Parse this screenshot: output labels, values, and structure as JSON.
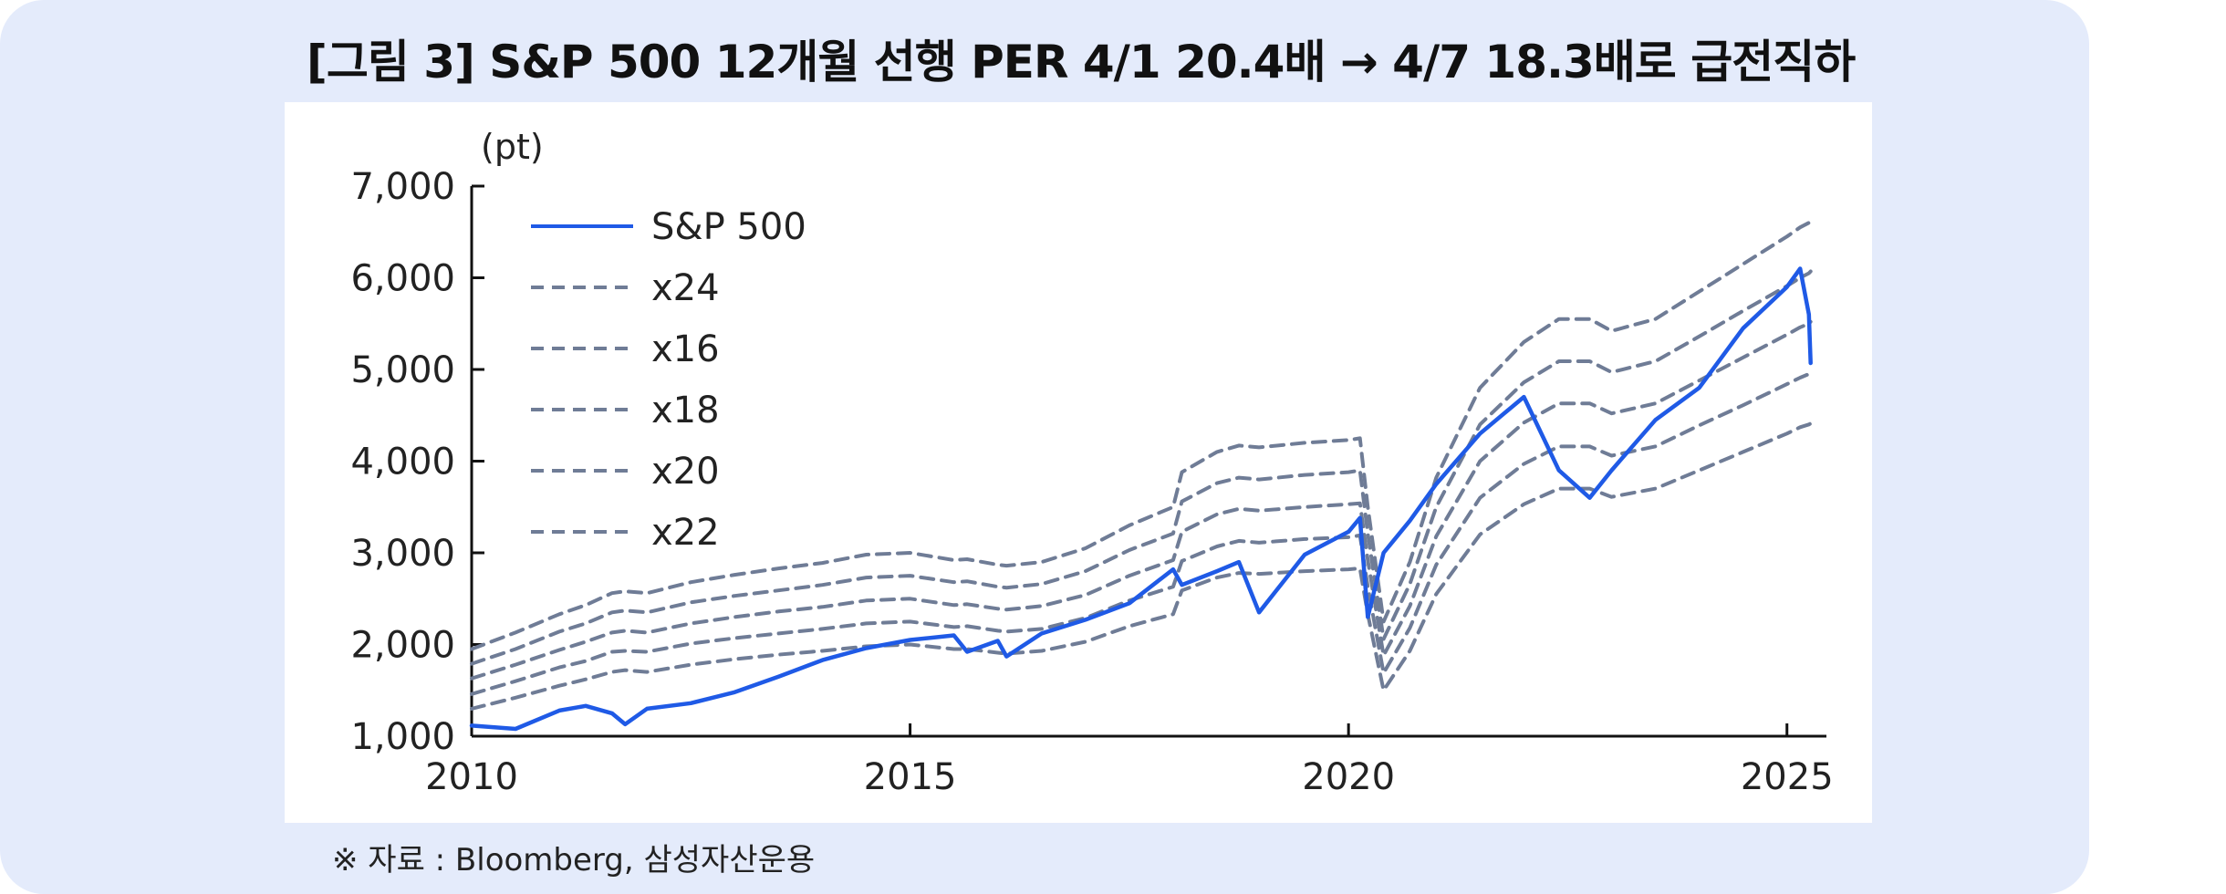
{
  "header": {
    "title": "[그림 3] S&P 500 12개월 선행 PER 4/1 20.4배 → 4/7 18.3배로 급전직하"
  },
  "footer": {
    "source": "※ 자료 : Bloomberg, 삼성자산운용"
  },
  "colors": {
    "background": "#e4ebfb",
    "sp500": "#1f5ae6",
    "per_bands": "#6f7c96"
  },
  "chart_data": {
    "type": "line",
    "title": "[그림 3] S&P 500 12개월 선행 PER 4/1 20.4배 → 4/7 18.3배로 급전직하",
    "unit_label": "(pt)",
    "xlabel": "",
    "ylabel": "",
    "xlim": [
      2010.0,
      2025.45
    ],
    "ylim": [
      1000,
      7000
    ],
    "x_ticks": [
      "2010",
      "2015",
      "2020",
      "2025"
    ],
    "y_ticks": [
      "1,000",
      "2,000",
      "3,000",
      "4,000",
      "5,000",
      "6,000",
      "7,000"
    ],
    "grid": false,
    "legend_position": "top-left",
    "x": [
      2010.0,
      2010.5,
      2011.0,
      2011.3,
      2011.6,
      2011.75,
      2012.0,
      2012.5,
      2013.0,
      2013.5,
      2014.0,
      2014.5,
      2015.0,
      2015.5,
      2015.65,
      2016.0,
      2016.1,
      2016.5,
      2017.0,
      2017.5,
      2018.0,
      2018.1,
      2018.5,
      2018.75,
      2018.98,
      2019.5,
      2020.0,
      2020.13,
      2020.22,
      2020.4,
      2020.7,
      2021.0,
      2021.5,
      2022.0,
      2022.4,
      2022.75,
      2023.0,
      2023.5,
      2024.0,
      2024.5,
      2025.0,
      2025.15,
      2025.25,
      2025.27
    ],
    "series": [
      {
        "name": "S&P 500",
        "style": "solid",
        "values": [
          1115,
          1080,
          1280,
          1330,
          1250,
          1130,
          1300,
          1360,
          1480,
          1650,
          1830,
          1960,
          2050,
          2100,
          1920,
          2040,
          1870,
          2120,
          2270,
          2450,
          2820,
          2650,
          2800,
          2900,
          2350,
          2980,
          3230,
          3380,
          2300,
          3000,
          3350,
          3750,
          4300,
          4700,
          3900,
          3600,
          3900,
          4450,
          4800,
          5450,
          5900,
          6100,
          5600,
          5070
        ]
      },
      {
        "name": "x24",
        "style": "dashed",
        "values": [
          1950,
          2130,
          2330,
          2430,
          2560,
          2580,
          2560,
          2680,
          2760,
          2830,
          2890,
          2980,
          3000,
          2920,
          2930,
          2870,
          2860,
          2900,
          3050,
          3300,
          3500,
          3880,
          4100,
          4170,
          4150,
          4200,
          4230,
          4250,
          3500,
          2250,
          2900,
          3820,
          4800,
          5300,
          5550,
          5550,
          5420,
          5550,
          5850,
          6150,
          6450,
          6550,
          6600,
          6620
        ]
      },
      {
        "name": "x16",
        "style": "dashed",
        "values": [
          1300,
          1420,
          1550,
          1620,
          1700,
          1720,
          1700,
          1780,
          1840,
          1890,
          1930,
          1980,
          2000,
          1950,
          1950,
          1910,
          1900,
          1930,
          2030,
          2200,
          2330,
          2590,
          2730,
          2780,
          2770,
          2800,
          2820,
          2830,
          2330,
          1500,
          1930,
          2550,
          3200,
          3530,
          3700,
          3700,
          3610,
          3700,
          3900,
          4100,
          4300,
          4370,
          4400,
          4410
        ]
      },
      {
        "name": "x18",
        "style": "dashed",
        "values": [
          1460,
          1600,
          1750,
          1820,
          1920,
          1930,
          1920,
          2010,
          2070,
          2120,
          2170,
          2230,
          2250,
          2190,
          2200,
          2150,
          2140,
          2170,
          2290,
          2480,
          2630,
          2910,
          3070,
          3130,
          3110,
          3150,
          3170,
          3190,
          2630,
          1690,
          2180,
          2870,
          3600,
          3970,
          4160,
          4160,
          4060,
          4160,
          4390,
          4610,
          4840,
          4910,
          4950,
          4960
        ]
      },
      {
        "name": "x20",
        "style": "dashed",
        "values": [
          1630,
          1780,
          1940,
          2030,
          2130,
          2150,
          2130,
          2230,
          2300,
          2360,
          2410,
          2480,
          2500,
          2430,
          2440,
          2390,
          2380,
          2420,
          2540,
          2750,
          2920,
          3230,
          3420,
          3480,
          3460,
          3500,
          3530,
          3540,
          2920,
          1880,
          2420,
          3180,
          4000,
          4420,
          4630,
          4630,
          4520,
          4630,
          4880,
          5130,
          5380,
          5460,
          5500,
          5520
        ]
      },
      {
        "name": "x22",
        "style": "dashed",
        "values": [
          1790,
          1950,
          2140,
          2230,
          2350,
          2370,
          2350,
          2460,
          2530,
          2590,
          2650,
          2730,
          2750,
          2680,
          2690,
          2630,
          2620,
          2660,
          2800,
          3030,
          3210,
          3560,
          3760,
          3820,
          3800,
          3850,
          3880,
          3900,
          3210,
          2060,
          2660,
          3500,
          4400,
          4860,
          5090,
          5090,
          4970,
          5090,
          5360,
          5640,
          5910,
          6000,
          6050,
          6070
        ]
      }
    ]
  }
}
